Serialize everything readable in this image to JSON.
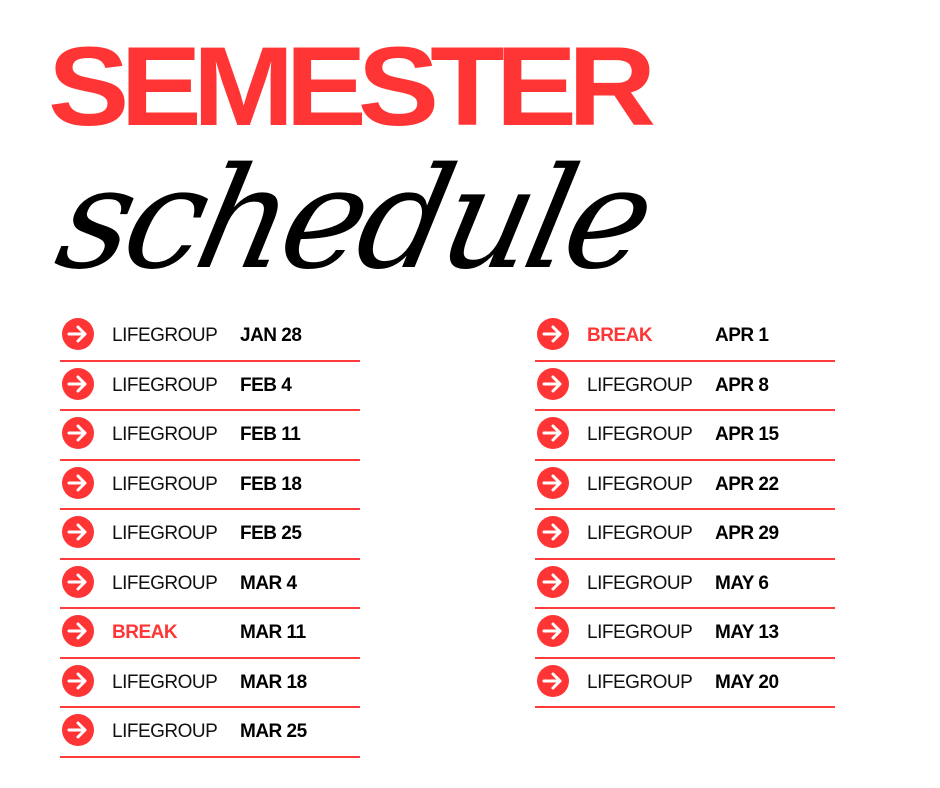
{
  "header": {
    "title": "SEMESTER",
    "subtitle": "schedule"
  },
  "colors": {
    "accent": "#ff3535",
    "text": "#000000"
  },
  "icon": "arrow-right-circle-icon",
  "left_column": [
    {
      "label": "LIFEGROUP",
      "date": "JAN 28"
    },
    {
      "label": "LIFEGROUP",
      "date": "FEB 4"
    },
    {
      "label": "LIFEGROUP",
      "date": "FEB 11"
    },
    {
      "label": "LIFEGROUP",
      "date": "FEB 18"
    },
    {
      "label": "LIFEGROUP",
      "date": "FEB 25"
    },
    {
      "label": "LIFEGROUP",
      "date": "MAR 4"
    },
    {
      "label": "BREAK",
      "date": "MAR 11"
    },
    {
      "label": "LIFEGROUP",
      "date": "MAR 18"
    },
    {
      "label": "LIFEGROUP",
      "date": "MAR 25"
    }
  ],
  "right_column": [
    {
      "label": "BREAK",
      "date": "APR 1"
    },
    {
      "label": "LIFEGROUP",
      "date": "APR 8"
    },
    {
      "label": "LIFEGROUP",
      "date": "APR 15"
    },
    {
      "label": "LIFEGROUP",
      "date": "APR 22"
    },
    {
      "label": "LIFEGROUP",
      "date": "APR 29"
    },
    {
      "label": "LIFEGROUP",
      "date": "MAY 6"
    },
    {
      "label": "LIFEGROUP",
      "date": "MAY 13"
    },
    {
      "label": "LIFEGROUP",
      "date": "MAY 20"
    }
  ]
}
